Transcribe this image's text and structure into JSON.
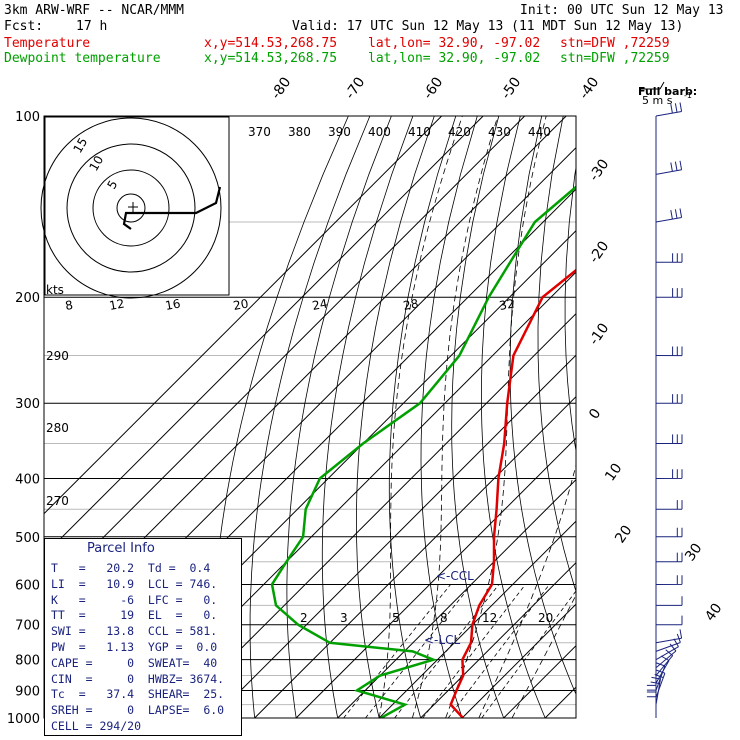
{
  "header": {
    "model": "3km ARW-WRF -- NCAR/MMM",
    "init": "Init: 00 UTC Sun 12 May 13",
    "fcst_label": "Fcst:",
    "fcst_value": "17 h",
    "valid": "Valid: 17 UTC Sun 12 May 13 (11 MDT Sun 12 May 13)",
    "temp_line": {
      "label": "Temperature",
      "xy": "x,y=514.53,268.75",
      "latlon": "lat,lon= 32.90, -97.02",
      "stn": "stn=DFW ,72259"
    },
    "dew_line": {
      "label": "Dewpoint temperature",
      "xy": "x,y=514.53,268.75",
      "latlon": "lat,lon= 32.90, -97.02",
      "stn": "stn=DFW ,72259"
    }
  },
  "colors": {
    "temperature": "#e00000",
    "dewpoint": "#00a000",
    "index_text": "#1a237e",
    "grid": "#000000"
  },
  "wind_legend": {
    "title": "Full barb:",
    "value": "5 m s",
    "sup": "-1"
  },
  "pressure_labels": [
    "100",
    "200",
    "300",
    "400",
    "500",
    "600",
    "700",
    "800",
    "900",
    "1000"
  ],
  "isotherm_labels": [
    "-80",
    "-70",
    "-60",
    "-50",
    "-40",
    "-30",
    "-20",
    "-10",
    "0",
    "10",
    "20",
    "30",
    "40"
  ],
  "theta_labels": [
    "370",
    "380",
    "390",
    "400",
    "410",
    "420",
    "430",
    "440"
  ],
  "theta_left_labels": [
    "290",
    "280",
    "270"
  ],
  "mixing_labels": [
    "2",
    "3",
    "5",
    "8",
    "12",
    "20"
  ],
  "hodo": {
    "units": "kts",
    "ring_labels": [
      "15",
      "10",
      "5"
    ],
    "speed_labels": [
      "8",
      "12",
      "16",
      "20",
      "24",
      "28",
      "32"
    ]
  },
  "annotations": {
    "ccl": "<-CCL",
    "lcl": "<-LCL"
  },
  "parcel": {
    "title": "Parcel Info",
    "rows": [
      "T   =   20.2  Td =  0.4",
      "LI  =   10.9  LCL = 746.",
      "K   =     -6  LFC =   0.",
      "TT  =     19  EL  =   0.",
      "SWI =   13.8  CCL = 581.",
      "PW  =   1.13  YGP =  0.0",
      "CAPE =     0  SWEAT=  40",
      "CIN  =     0  HWBZ= 3674.",
      "Tc  =   37.4  SHEAR=  25.",
      "SREH =     0  LAPSE=  6.0",
      "CELL = 294/20"
    ]
  },
  "chart_data": {
    "type": "line",
    "title": "",
    "xlabel": "",
    "ylabel": "",
    "y_scale": "log-pressure",
    "ylim": [
      1000,
      100
    ],
    "series": [
      {
        "name": "Temperature",
        "pressure": [
          1000,
          950,
          900,
          850,
          800,
          750,
          700,
          650,
          600,
          550,
          500,
          450,
          400,
          350,
          300,
          250,
          200,
          175,
          150,
          125,
          100
        ],
        "temp": [
          20.2,
          14,
          12,
          10,
          6,
          4,
          0,
          -3,
          -5,
          -10,
          -16,
          -22,
          -29,
          -36,
          -45,
          -55,
          -62,
          -60,
          -56,
          -52,
          -46
        ]
      },
      {
        "name": "Dewpoint temperature",
        "pressure": [
          1000,
          950,
          900,
          850,
          800,
          775,
          750,
          700,
          650,
          600,
          550,
          500,
          450,
          400,
          350,
          300,
          250,
          200,
          150,
          125,
          100
        ],
        "temp": [
          0.4,
          3,
          -12,
          -10,
          -1,
          -8,
          -30,
          -42,
          -52,
          -58,
          -60,
          -62,
          -68,
          -72,
          -70,
          -66,
          -68,
          -75,
          -82,
          -80,
          -70
        ]
      }
    ],
    "wind_barbs": {
      "pressure": [
        1000,
        975,
        950,
        925,
        900,
        875,
        850,
        825,
        800,
        775,
        750,
        700,
        650,
        600,
        550,
        500,
        450,
        400,
        350,
        300,
        250,
        200,
        175,
        150,
        125,
        100
      ],
      "direction_deg": [
        180,
        180,
        190,
        200,
        200,
        210,
        220,
        230,
        240,
        250,
        260,
        270,
        270,
        270,
        270,
        270,
        270,
        270,
        270,
        270,
        270,
        270,
        270,
        260,
        260,
        260
      ],
      "speed_ms": [
        10,
        10,
        10,
        10,
        5,
        5,
        5,
        5,
        5,
        5,
        5,
        5,
        5,
        10,
        10,
        10,
        10,
        15,
        15,
        15,
        15,
        15,
        15,
        15,
        15,
        15
      ]
    }
  }
}
